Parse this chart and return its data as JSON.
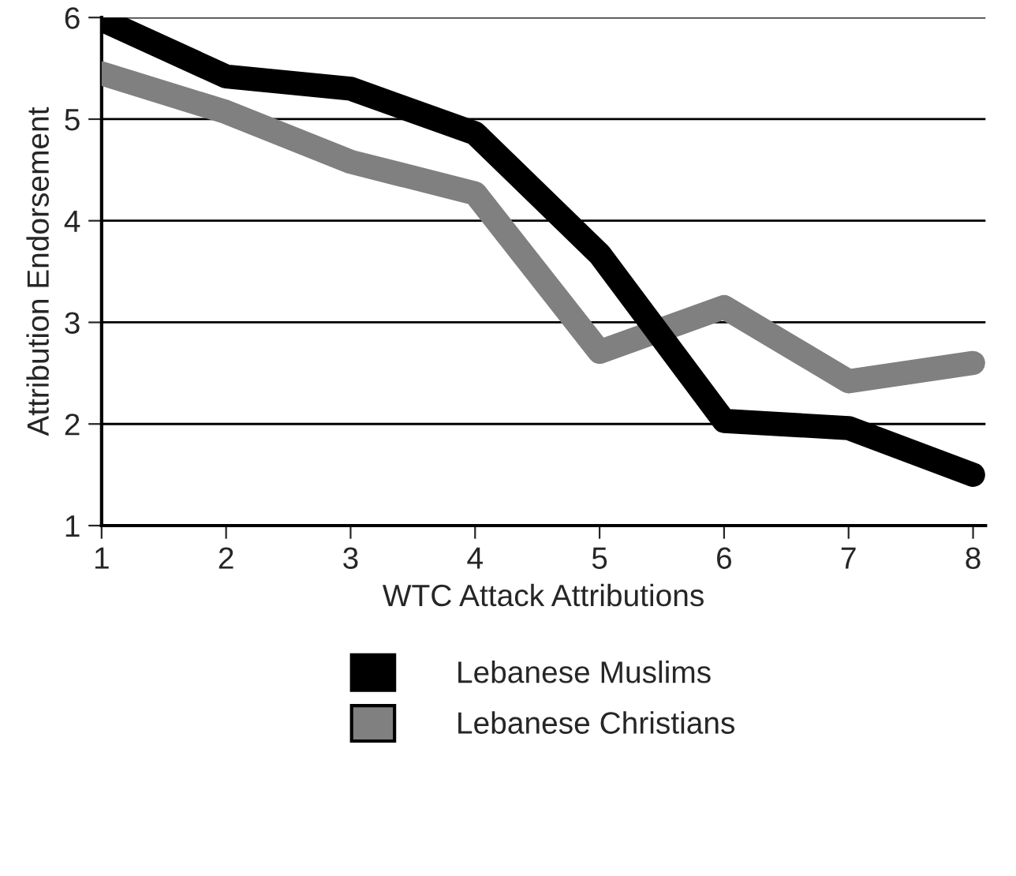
{
  "chart_data": {
    "type": "line",
    "xlabel": "WTC Attack Attributions",
    "ylabel": "Attribution Endorsement",
    "x": [
      1,
      2,
      3,
      4,
      5,
      6,
      7,
      8
    ],
    "xlim": [
      1,
      8.1
    ],
    "xticks": [
      1,
      2,
      3,
      4,
      5,
      6,
      7,
      8
    ],
    "ylim": [
      1,
      6
    ],
    "yticks": [
      1,
      2,
      3,
      4,
      5,
      6
    ],
    "grid": "y",
    "legend": "bottom",
    "marker": "none",
    "line_style": "solid",
    "series": [
      {
        "name": "Lebanese Muslims",
        "color": "#000000",
        "values": [
          5.98,
          5.42,
          5.3,
          4.86,
          3.67,
          2.03,
          1.96,
          1.5
        ]
      },
      {
        "name": "Lebanese Christians",
        "color": "#808080",
        "values": [
          5.45,
          5.07,
          4.58,
          4.27,
          2.71,
          3.15,
          2.42,
          2.6
        ]
      }
    ]
  }
}
